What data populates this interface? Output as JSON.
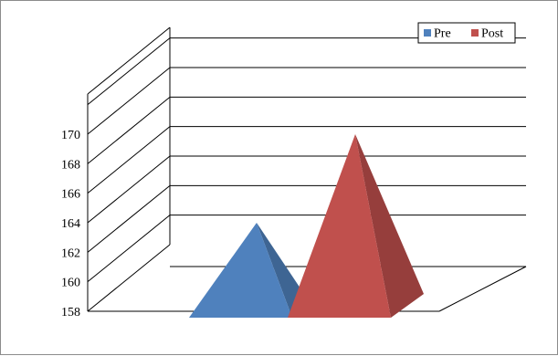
{
  "chart_data": {
    "type": "bar",
    "style": "3d-pyramid",
    "categories": [
      ""
    ],
    "series": [
      {
        "name": "Pre",
        "values": [
          164
        ],
        "color": "#4f81bd"
      },
      {
        "name": "Post",
        "values": [
          170
        ],
        "color": "#c0504d"
      }
    ],
    "ylim": [
      158,
      170
    ],
    "yticks": [
      158,
      160,
      162,
      164,
      166,
      168,
      170
    ],
    "ytick_labels": [
      "158",
      "160",
      "162",
      "164",
      "166",
      "168",
      "170"
    ],
    "grid": true,
    "legend_position": "top-right",
    "title": "",
    "xlabel": "",
    "ylabel": ""
  }
}
